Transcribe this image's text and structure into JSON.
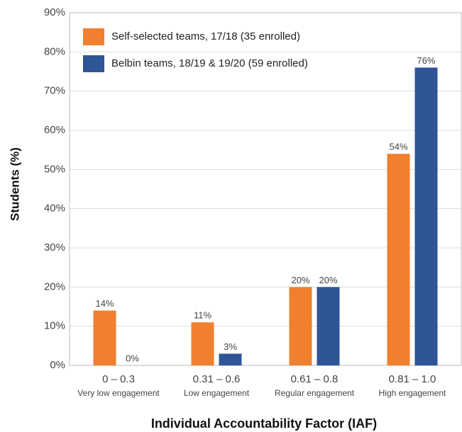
{
  "chart_data": {
    "type": "bar",
    "categories": [
      "0 – 0.3",
      "0.31 – 0.6",
      "0.61 – 0.8",
      "0.81 – 1.0"
    ],
    "category_notes": [
      "Very low engagement",
      "Low engagement",
      "Regular engagement",
      "High engagement"
    ],
    "series": [
      {
        "name": "Self-selected teams, 17/18 (35 enrolled)",
        "color": "#f07f2e",
        "values": [
          14,
          11,
          20,
          54
        ],
        "value_labels": [
          "14%",
          "11%",
          "20%",
          "54%"
        ]
      },
      {
        "name": "Belbin teams, 18/19 & 19/20 (59 enrolled)",
        "color": "#2e5596",
        "values": [
          0,
          3,
          20,
          76
        ],
        "value_labels": [
          "0%",
          "3%",
          "20%",
          "76%"
        ]
      }
    ],
    "xlabel": "Individual Accountability Factor (IAF)",
    "ylabel": "Students (%)",
    "ylim": [
      0,
      90
    ],
    "yticks": [
      {
        "value": 0,
        "label": "0%"
      },
      {
        "value": 10,
        "label": "10%"
      },
      {
        "value": 20,
        "label": "20%"
      },
      {
        "value": 30,
        "label": "30%"
      },
      {
        "value": 40,
        "label": "40%"
      },
      {
        "value": 50,
        "label": "50%"
      },
      {
        "value": 60,
        "label": "60%"
      },
      {
        "value": 70,
        "label": "70%"
      },
      {
        "value": 80,
        "label": "80%"
      },
      {
        "value": 90,
        "label": "90%"
      }
    ],
    "grid": true,
    "legend": "top-left"
  }
}
